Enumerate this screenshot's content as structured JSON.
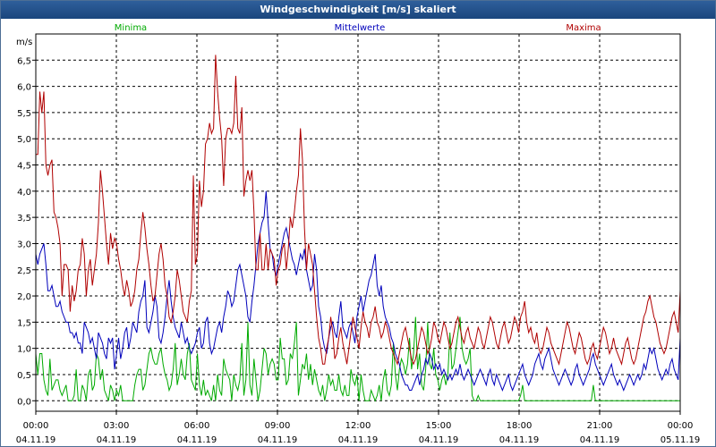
{
  "title": "Windgeschwindigkeit [m/s] skaliert",
  "chart_data": {
    "type": "line",
    "title": "Windgeschwindigkeit [m/s] skaliert",
    "ylabel": "m/s",
    "xlabel": "",
    "ylim": [
      -0.2,
      7.0
    ],
    "xlim": [
      "04.11.19 00:00",
      "05.11.19 00:00"
    ],
    "x_step_minutes": 10,
    "grid": true,
    "legend_placement": "top",
    "y_ticks": [
      "0,0",
      "0,5",
      "1,0",
      "1,5",
      "2,0",
      "2,5",
      "3,0",
      "3,5",
      "4,0",
      "4,5",
      "5,0",
      "5,5",
      "6,0",
      "6,5"
    ],
    "x_ticks": [
      {
        "time": "00:00",
        "date": "04.11.19"
      },
      {
        "time": "03:00",
        "date": "04.11.19"
      },
      {
        "time": "06:00",
        "date": "04.11.19"
      },
      {
        "time": "09:00",
        "date": "04.11.19"
      },
      {
        "time": "12:00",
        "date": "04.11.19"
      },
      {
        "time": "15:00",
        "date": "04.11.19"
      },
      {
        "time": "18:00",
        "date": "04.11.19"
      },
      {
        "time": "21:00",
        "date": "04.11.19"
      },
      {
        "time": "00:00",
        "date": "05.11.19"
      }
    ],
    "series": [
      {
        "name": "Minima",
        "color": "#00aa00",
        "values": [
          0.9,
          0.5,
          0.9,
          0.9,
          0.4,
          0.2,
          0.1,
          0.8,
          0.2,
          0.3,
          0.4,
          0.4,
          0.2,
          0.1,
          0.2,
          0.3,
          0.0,
          0.0,
          0.0,
          0.1,
          0.6,
          0.0,
          0.0,
          0.3,
          0.2,
          0.0,
          0.5,
          0.6,
          0.2,
          0.3,
          0.9,
          0.8,
          0.4,
          0.6,
          0.2,
          0.1,
          0.0,
          0.3,
          0.2,
          0.0,
          0.2,
          0.1,
          0.3,
          0.0,
          0.0,
          0.0,
          0.0,
          0.0,
          0.0,
          0.3,
          0.5,
          0.6,
          0.6,
          0.2,
          0.3,
          0.6,
          0.9,
          1.0,
          0.8,
          0.7,
          0.7,
          0.9,
          1.0,
          0.7,
          0.5,
          0.4,
          0.2,
          0.3,
          0.6,
          1.1,
          0.3,
          0.5,
          0.8,
          0.5,
          0.4,
          0.9,
          1.1,
          0.4,
          0.3,
          0.2,
          0.9,
          0.3,
          0.1,
          0.4,
          0.1,
          0.2,
          0.1,
          0.0,
          0.3,
          0.0,
          0.5,
          0.2,
          0.1,
          0.8,
          0.6,
          0.5,
          0.4,
          0.0,
          0.5,
          0.3,
          0.2,
          0.4,
          1.1,
          0.1,
          0.4,
          1.5,
          0.3,
          0.1,
          0.8,
          0.4,
          0.0,
          0.2,
          0.6,
          1.0,
          0.9,
          0.5,
          0.7,
          0.8,
          0.7,
          0.4,
          0.4,
          1.2,
          0.8,
          0.8,
          0.3,
          0.4,
          0.9,
          0.8,
          1.1,
          1.5,
          0.1,
          0.4,
          0.7,
          0.6,
          0.9,
          0.4,
          0.7,
          0.3,
          0.6,
          0.4,
          0.2,
          0.1,
          0.3,
          0.0,
          0.2,
          0.5,
          0.3,
          0.4,
          0.2,
          0.2,
          0.5,
          0.2,
          0.1,
          0.3,
          0.1,
          0.1,
          0.6,
          0.4,
          0.3,
          0.5,
          0.0,
          0.5,
          0.2,
          0.0,
          0.0,
          0.0,
          0.2,
          0.1,
          0.0,
          0.1,
          0.3,
          0.0,
          0.4,
          0.6,
          0.2,
          0.1,
          0.3,
          1.1,
          0.5,
          0.2,
          0.6,
          0.8,
          0.7,
          0.5,
          0.7,
          1.2,
          0.6,
          0.9,
          1.6,
          0.6,
          0.9,
          0.3,
          0.2,
          0.6,
          1.5,
          0.7,
          0.6,
          1.0,
          0.5,
          0.4,
          0.2,
          0.4,
          0.5,
          0.3,
          0.5,
          1.3,
          0.6,
          0.7,
          1.0,
          1.3,
          1.6,
          1.0,
          0.8,
          0.7,
          0.8,
          1.0,
          0.1,
          0.0,
          0.0,
          0.1,
          0.0,
          0.0,
          0.0,
          0.0,
          0.0,
          0.0,
          0.0,
          0.0,
          0.0,
          0.0,
          0.0,
          0.0,
          0.0,
          0.0,
          0.0,
          0.0,
          0.0,
          0.0,
          0.0,
          0.0,
          0.1,
          0.3,
          0.0,
          0.0,
          0.0,
          0.0,
          0.0,
          0.0,
          0.0,
          0.0,
          0.0,
          0.0,
          0.0,
          0.0,
          0.0,
          0.0,
          0.0,
          0.0,
          0.0,
          0.0,
          0.0,
          0.0,
          0.0,
          0.0,
          0.0,
          0.0,
          0.0,
          0.0,
          0.0,
          0.0,
          0.0,
          0.0,
          0.0,
          0.0,
          0.0,
          0.0,
          0.3,
          0.0,
          0.0,
          0.0,
          0.0,
          0.0,
          0.0,
          0.0,
          0.0,
          0.0,
          0.0,
          0.0,
          0.0,
          0.0,
          0.0,
          0.0,
          0.0,
          0.0,
          0.0,
          0.0,
          0.0,
          0.0,
          0.0,
          0.0,
          0.0,
          0.0,
          0.0,
          0.0,
          0.0,
          0.0,
          0.0,
          0.0,
          0.0,
          0.0,
          0.0,
          0.0,
          0.0,
          0.0,
          0.0,
          0.0,
          0.0,
          0.0,
          0.0,
          0.0
        ]
      },
      {
        "name": "Mittelwerte",
        "color": "#0000bb",
        "values": [
          2.8,
          2.6,
          2.8,
          2.9,
          3.0,
          2.6,
          2.1,
          2.1,
          2.2,
          2.0,
          1.8,
          1.8,
          1.9,
          1.7,
          1.6,
          1.5,
          1.5,
          1.3,
          1.3,
          1.2,
          1.3,
          1.1,
          1.1,
          0.9,
          1.5,
          1.4,
          1.3,
          1.1,
          1.2,
          1.0,
          0.8,
          1.3,
          1.2,
          1.1,
          0.9,
          0.8,
          1.2,
          1.1,
          1.2,
          0.6,
          0.9,
          1.2,
          0.8,
          1.0,
          1.3,
          1.4,
          1.0,
          1.2,
          1.5,
          1.4,
          1.3,
          1.7,
          1.9,
          2.0,
          2.3,
          1.4,
          1.3,
          1.5,
          1.7,
          2.0,
          1.8,
          1.2,
          1.1,
          1.3,
          1.6,
          2.0,
          2.3,
          1.9,
          1.6,
          1.4,
          1.3,
          1.2,
          1.5,
          1.3,
          1.1,
          1.2,
          1.0,
          0.9,
          1.0,
          1.1,
          1.3,
          1.4,
          1.0,
          1.1,
          1.5,
          1.6,
          1.1,
          0.9,
          1.0,
          1.2,
          1.4,
          1.5,
          1.3,
          1.6,
          1.8,
          2.1,
          2.0,
          1.8,
          1.9,
          2.2,
          2.5,
          2.6,
          2.4,
          2.2,
          2.0,
          1.6,
          1.5,
          1.9,
          2.2,
          2.6,
          3.0,
          3.2,
          3.4,
          3.5,
          4.0,
          3.4,
          2.9,
          2.8,
          2.5,
          2.4,
          2.6,
          2.8,
          3.0,
          3.2,
          3.3,
          3.1,
          2.9,
          2.7,
          2.6,
          2.4,
          2.6,
          2.8,
          2.7,
          2.9,
          2.5,
          2.3,
          2.1,
          2.2,
          2.8,
          2.5,
          1.8,
          1.6,
          1.2,
          1.0,
          0.9,
          1.2,
          1.4,
          1.5,
          1.3,
          1.2,
          1.6,
          1.9,
          1.4,
          1.3,
          1.2,
          1.4,
          1.5,
          1.3,
          1.1,
          1.6,
          1.8,
          2.0,
          1.7,
          1.9,
          2.1,
          2.3,
          2.4,
          2.6,
          2.8,
          2.2,
          2.0,
          2.2,
          1.8,
          1.6,
          1.5,
          1.4,
          1.2,
          1.1,
          0.9,
          0.8,
          0.7,
          0.5,
          0.4,
          0.3,
          0.3,
          0.2,
          0.2,
          0.3,
          0.4,
          0.5,
          0.3,
          0.5,
          0.6,
          0.8,
          0.7,
          0.9,
          0.8,
          0.6,
          0.7,
          0.6,
          0.7,
          0.5,
          0.6,
          0.5,
          0.4,
          0.5,
          0.4,
          0.5,
          0.6,
          0.5,
          0.7,
          0.5,
          0.4,
          0.5,
          0.6,
          0.5,
          0.4,
          0.3,
          0.4,
          0.5,
          0.6,
          0.5,
          0.4,
          0.3,
          0.5,
          0.6,
          0.4,
          0.3,
          0.5,
          0.4,
          0.3,
          0.2,
          0.3,
          0.4,
          0.5,
          0.3,
          0.2,
          0.3,
          0.4,
          0.5,
          0.6,
          0.7,
          0.5,
          0.4,
          0.3,
          0.4,
          0.5,
          0.7,
          0.8,
          0.9,
          0.7,
          0.6,
          0.8,
          0.9,
          1.0,
          0.8,
          0.6,
          0.5,
          0.4,
          0.3,
          0.4,
          0.5,
          0.6,
          0.5,
          0.4,
          0.3,
          0.4,
          0.6,
          0.7,
          0.5,
          0.4,
          0.3,
          0.4,
          0.5,
          0.6,
          0.8,
          0.9,
          0.7,
          0.6,
          0.5,
          0.4,
          0.3,
          0.4,
          0.5,
          0.6,
          0.7,
          0.5,
          0.4,
          0.3,
          0.4,
          0.3,
          0.2,
          0.3,
          0.4,
          0.5,
          0.4,
          0.3,
          0.4,
          0.5,
          0.4,
          0.5,
          0.7,
          0.6,
          0.8,
          1.0,
          0.9,
          1.0,
          0.8,
          0.6,
          0.5,
          0.4,
          0.5,
          0.6,
          0.5,
          0.7,
          0.8,
          0.6,
          0.5,
          0.4,
          1.2
        ]
      },
      {
        "name": "Maxima",
        "color": "#b00000",
        "values": [
          4.7,
          4.7,
          5.9,
          5.5,
          5.9,
          4.5,
          4.3,
          4.5,
          4.6,
          3.6,
          3.5,
          3.3,
          3.0,
          2.0,
          2.6,
          2.6,
          2.5,
          1.7,
          2.2,
          1.9,
          2.1,
          2.5,
          2.6,
          3.1,
          2.8,
          2.0,
          2.5,
          2.7,
          2.2,
          2.5,
          2.8,
          3.4,
          4.4,
          4.0,
          3.5,
          3.0,
          2.6,
          3.2,
          2.9,
          3.1,
          3.0,
          2.7,
          2.5,
          2.2,
          2.0,
          2.3,
          2.1,
          1.8,
          1.9,
          2.1,
          2.5,
          2.7,
          3.2,
          3.6,
          3.3,
          2.9,
          2.6,
          2.2,
          1.9,
          2.0,
          2.4,
          2.8,
          3.0,
          2.7,
          2.2,
          2.0,
          1.6,
          1.5,
          1.7,
          2.0,
          2.5,
          2.3,
          2.0,
          1.7,
          1.6,
          1.5,
          1.9,
          2.1,
          4.3,
          2.6,
          2.8,
          4.2,
          3.7,
          4.0,
          4.9,
          5.0,
          5.3,
          5.1,
          5.2,
          6.6,
          5.9,
          5.4,
          5.0,
          4.1,
          5.0,
          5.2,
          5.2,
          5.1,
          5.3,
          6.2,
          5.2,
          5.1,
          5.6,
          3.9,
          4.2,
          4.4,
          4.2,
          4.4,
          3.6,
          2.5,
          2.5,
          3.2,
          2.5,
          2.5,
          3.0,
          2.5,
          2.9,
          2.8,
          2.7,
          2.2,
          2.5,
          2.6,
          2.9,
          3.0,
          2.5,
          2.9,
          3.5,
          3.3,
          3.6,
          4.0,
          4.3,
          5.2,
          4.6,
          3.3,
          2.5,
          3.0,
          2.8,
          2.6,
          2.1,
          1.6,
          1.2,
          1.0,
          0.7,
          0.7,
          1.0,
          1.2,
          1.6,
          1.3,
          0.8,
          0.9,
          1.2,
          1.4,
          1.1,
          0.9,
          0.7,
          1.0,
          1.3,
          1.6,
          1.4,
          1.2,
          1.0,
          1.4,
          1.7,
          1.5,
          1.4,
          1.2,
          1.5,
          1.6,
          1.8,
          1.5,
          1.4,
          1.2,
          1.3,
          1.5,
          1.4,
          1.2,
          1.0,
          0.9,
          0.8,
          0.7,
          0.9,
          1.1,
          1.3,
          1.4,
          1.2,
          1.0,
          0.8,
          0.7,
          0.8,
          1.0,
          1.2,
          1.4,
          1.3,
          1.1,
          0.9,
          1.0,
          1.2,
          1.5,
          1.4,
          1.2,
          1.1,
          1.3,
          1.5,
          1.4,
          1.2,
          1.0,
          1.1,
          1.3,
          1.5,
          1.6,
          1.4,
          1.2,
          1.1,
          1.3,
          1.4,
          1.2,
          1.1,
          1.0,
          1.2,
          1.4,
          1.3,
          1.1,
          1.0,
          1.2,
          1.4,
          1.6,
          1.5,
          1.3,
          1.1,
          1.0,
          1.2,
          1.4,
          1.5,
          1.3,
          1.1,
          1.2,
          1.4,
          1.6,
          1.5,
          1.3,
          1.6,
          1.7,
          1.9,
          1.5,
          1.3,
          1.4,
          1.2,
          1.1,
          1.3,
          1.0,
          0.9,
          1.0,
          1.2,
          1.4,
          1.3,
          1.1,
          1.0,
          0.9,
          0.8,
          0.7,
          0.9,
          1.1,
          1.3,
          1.5,
          1.4,
          1.2,
          1.0,
          0.9,
          1.1,
          1.3,
          1.2,
          1.0,
          0.8,
          0.7,
          0.8,
          1.0,
          1.1,
          0.9,
          0.8,
          1.0,
          1.2,
          1.4,
          1.3,
          1.1,
          0.9,
          1.0,
          1.2,
          1.0,
          0.9,
          0.8,
          0.7,
          0.9,
          1.1,
          1.2,
          1.0,
          0.8,
          0.7,
          0.8,
          1.0,
          1.2,
          1.4,
          1.6,
          1.7,
          1.9,
          2.0,
          1.8,
          1.6,
          1.5,
          1.3,
          1.1,
          1.0,
          0.9,
          1.0,
          1.2,
          1.4,
          1.6,
          1.7,
          1.5,
          1.3,
          2.1
        ]
      }
    ]
  }
}
